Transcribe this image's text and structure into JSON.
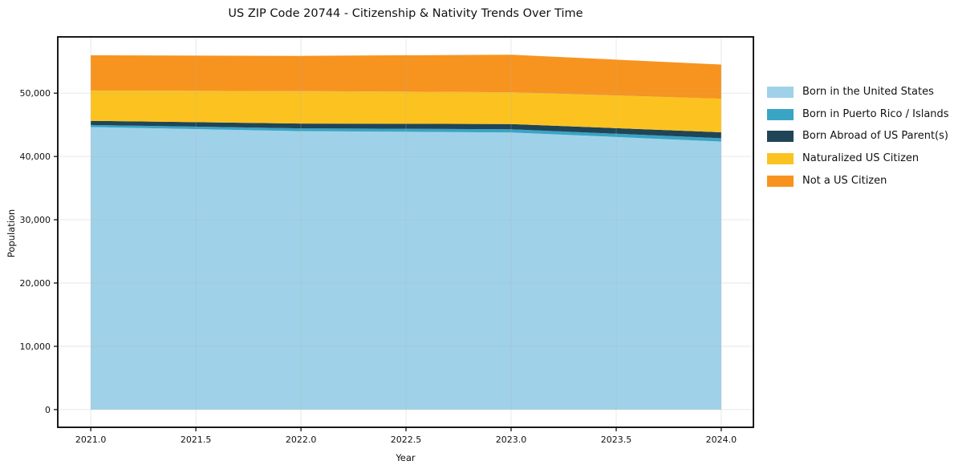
{
  "chart_data": {
    "type": "area",
    "stacked": true,
    "title": "US ZIP Code 20744 - Citizenship & Nativity Trends Over Time",
    "xlabel": "Year",
    "ylabel": "Population",
    "x": [
      2021,
      2022,
      2023,
      2024
    ],
    "series": [
      {
        "name": "Born in the United States",
        "color": "#9fd2e8",
        "values": [
          44650,
          44000,
          43800,
          42350
        ]
      },
      {
        "name": "Born in Puerto Rico / Islands",
        "color": "#3aa4c5",
        "values": [
          330,
          440,
          510,
          540
        ]
      },
      {
        "name": "Born Abroad of US Parent(s)",
        "color": "#1f4557",
        "values": [
          650,
          760,
          820,
          930
        ]
      },
      {
        "name": "Naturalized US Citizen",
        "color": "#fcc320",
        "values": [
          4800,
          5120,
          5010,
          5310
        ]
      },
      {
        "name": "Not a US Citizen",
        "color": "#f7941f",
        "values": [
          5550,
          5580,
          5950,
          5400
        ]
      }
    ],
    "totals": [
      55980,
      55900,
      56090,
      54530
    ],
    "xticks": [
      2021.0,
      2021.5,
      2022.0,
      2022.5,
      2023.0,
      2023.5,
      2024.0
    ],
    "xtick_labels": [
      "2021.0",
      "2021.5",
      "2022.0",
      "2022.5",
      "2023.0",
      "2023.5",
      "2024.0"
    ],
    "yticks": [
      0,
      10000,
      20000,
      30000,
      40000,
      50000
    ],
    "ytick_labels": [
      "0",
      "10,000",
      "20,000",
      "30,000",
      "40,000",
      "50,000"
    ],
    "xlim": [
      2020.843,
      2024.153
    ],
    "ylim": [
      -2800,
      58900
    ],
    "grid": true,
    "grid_color": "#b0b0b0",
    "axis_color": "#000000",
    "legend_position": "outside-right"
  }
}
